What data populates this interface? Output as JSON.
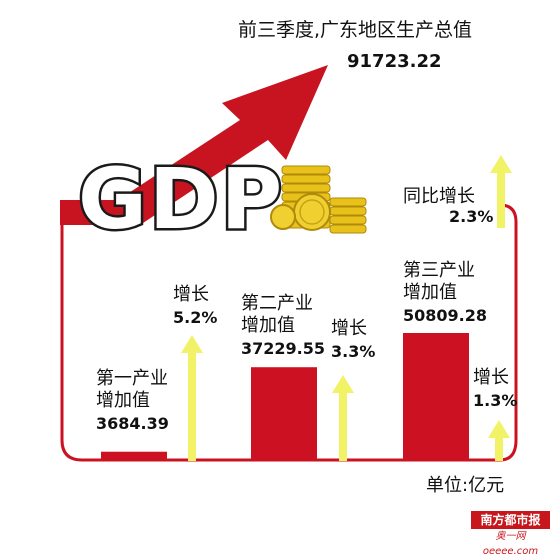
{
  "headline": {
    "title": "前三季度,广东地区生产总值",
    "total": "91723.22"
  },
  "logo_text": "GDP",
  "unit_label": "单位:亿元",
  "yoy": {
    "label": "同比增长",
    "value": "2.3%"
  },
  "chart_data": {
    "type": "bar",
    "title": "前三季度,广东地区生产总值 91723.22",
    "unit": "亿元",
    "categories": [
      "第一产业增加值",
      "第二产业增加值",
      "第三产业增加值"
    ],
    "values": [
      3684.39,
      37229.55,
      50809.28
    ],
    "value_labels": [
      "3684.39",
      "37229.55",
      "50809.28"
    ],
    "growth": [
      "5.2%",
      "3.3%",
      "1.3%"
    ],
    "growth_values": [
      5.2,
      3.3,
      1.3
    ],
    "growth_label": "增长",
    "category_lines": [
      [
        "第一产业",
        "增加值"
      ],
      [
        "第二产业",
        "增加值"
      ],
      [
        "第三产业",
        "增加值"
      ]
    ],
    "total_growth": "2.3%"
  },
  "colors": {
    "bar": "#cc1222",
    "frame": "#cc1222",
    "growth_arrow": "#f2f266",
    "trend_arrow": "#c81420",
    "coins": "#e8c21a"
  },
  "watermark": {
    "name": "南方都市报",
    "site": "奥一网oeeee.com"
  }
}
